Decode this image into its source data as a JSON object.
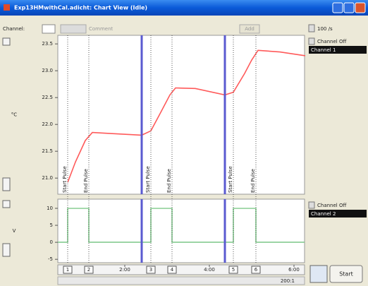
{
  "window": {
    "title": "Exp13HMwithCal.adicht: Chart View (Idle)"
  },
  "toolbar": {
    "channel_label": "Channel:",
    "comment_button": "Comment",
    "add_button": "Add",
    "rate": "100 /s"
  },
  "time_axis": {
    "xlim": [
      25,
      375
    ],
    "xticks": [
      {
        "value": 120,
        "label": "2:00"
      },
      {
        "value": 240,
        "label": "4:00"
      },
      {
        "value": 360,
        "label": "6:00"
      }
    ]
  },
  "channels": [
    {
      "name": "Channel 1",
      "status": "Channel Off",
      "unit": "°C",
      "color": "#ff5a5a",
      "ylim": [
        20.7,
        23.66
      ],
      "yticks": [
        {
          "value": 21,
          "label": "21.0"
        },
        21.5,
        {
          "value": 22,
          "label": "22.0"
        },
        22.5,
        {
          "value": 23,
          "label": "23.0"
        },
        23.5
      ],
      "x": [
        39,
        50,
        64,
        74,
        100,
        144,
        157,
        170,
        184,
        192,
        220,
        262,
        274,
        290,
        300,
        309,
        340,
        376
      ],
      "values": [
        20.92,
        21.3,
        21.7,
        21.85,
        21.83,
        21.8,
        21.88,
        22.2,
        22.55,
        22.68,
        22.67,
        22.55,
        22.6,
        22.95,
        23.2,
        23.38,
        23.35,
        23.28
      ]
    },
    {
      "name": "Channel 2",
      "status": "Channel Off",
      "unit": "V",
      "color": "#7fc98a",
      "ylim": [
        -6,
        12.7
      ],
      "yticks": [
        -5,
        0,
        5,
        10
      ],
      "x": [
        25,
        39,
        39,
        69,
        69,
        157,
        157,
        187,
        187,
        274,
        274,
        306,
        306,
        375
      ],
      "values": [
        0,
        0,
        10,
        10,
        0,
        0,
        10,
        10,
        0,
        0,
        10,
        10,
        0,
        0
      ]
    }
  ],
  "markers": [
    {
      "number": 1,
      "time": 39,
      "label": "Start Pulse"
    },
    {
      "number": 2,
      "time": 69,
      "label": "End Pulse"
    },
    {
      "number": 3,
      "time": 157,
      "label": "Start Pulse"
    },
    {
      "number": 4,
      "time": 187,
      "label": "End Pulse"
    },
    {
      "number": 5,
      "time": 274,
      "label": "Start Pulse"
    },
    {
      "number": 6,
      "time": 306,
      "label": "End Pulse"
    }
  ],
  "block_boundaries": [
    144,
    262
  ],
  "status": {
    "zoom": "200:1",
    "start_button": "Start"
  }
}
